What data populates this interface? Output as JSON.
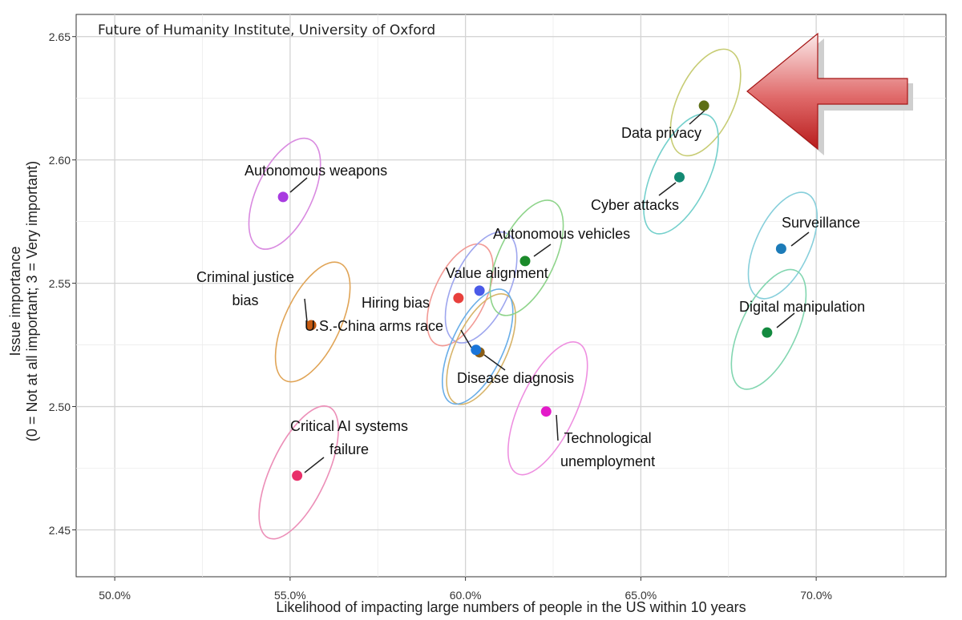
{
  "watermark": "Future of Humanity Institute, University of Oxford",
  "chart_data": {
    "type": "scatter",
    "title": "",
    "xlabel": "Likelihood of impacting large numbers of people in the US within 10 years",
    "ylabel_line1": "Issue importance",
    "ylabel_line2": "(0 = Not at all important; 3 = Very important)",
    "xlim": [
      48.9,
      73.7
    ],
    "ylim": [
      2.431,
      2.659
    ],
    "x_ticks": [
      "50.0%",
      "55.0%",
      "60.0%",
      "65.0%",
      "70.0%"
    ],
    "y_ticks": [
      "2.45",
      "2.50",
      "2.55",
      "2.60",
      "2.65"
    ],
    "grid": true,
    "points": [
      {
        "label": "Autonomous weapons",
        "x": 54.8,
        "y": 2.585,
        "color": "#a83be0",
        "ellipse_color": "#d98ae0",
        "dx": 2.2,
        "dy": 0.021,
        "lines": [
          "Autonomous weapons"
        ]
      },
      {
        "label": "Criminal justice bias",
        "x": 55.6,
        "y": 2.533,
        "color": "#c55a11",
        "ellipse_color": "#e0a456",
        "dx": 2.2,
        "dy": 0.023,
        "lines": [
          "Criminal justice",
          "bias"
        ]
      },
      {
        "label": "Critical AI systems failure",
        "x": 55.2,
        "y": 2.472,
        "color": "#e8306a",
        "ellipse_color": "#ec8fb8",
        "dx": 2.2,
        "dy": 0.026,
        "lines": [
          "Critical AI systems",
          "failure"
        ]
      },
      {
        "label": "Hiring bias",
        "x": 59.8,
        "y": 2.544,
        "color": "#e8403c",
        "ellipse_color": "#f29a95",
        "dx": 2.0,
        "dy": 0.019,
        "lines": [
          "Hiring bias"
        ]
      },
      {
        "label": "Value alignment",
        "x": 60.4,
        "y": 2.547,
        "color": "#4a5ae8",
        "ellipse_color": "#9ea6ee",
        "dx": 2.2,
        "dy": 0.021,
        "lines": [
          "Value alignment"
        ]
      },
      {
        "label": "U.S.-China arms race",
        "x": 60.4,
        "y": 2.522,
        "color": "#8a5d16",
        "ellipse_color": "#d7b46a",
        "dx": 2.0,
        "dy": 0.021,
        "lines": [
          "U.S.-China arms race"
        ]
      },
      {
        "label": "Disease diagnosis",
        "x": 60.3,
        "y": 2.523,
        "color": "#1a75d9",
        "ellipse_color": "#6aaee8",
        "dx": 2.0,
        "dy": 0.022,
        "lines": [
          "Disease diagnosis"
        ]
      },
      {
        "label": "Autonomous vehicles",
        "x": 61.7,
        "y": 2.559,
        "color": "#1b8a2a",
        "ellipse_color": "#8fd48b",
        "dx": 2.2,
        "dy": 0.022,
        "lines": [
          "Autonomous vehicles"
        ]
      },
      {
        "label": "Technological unemployment",
        "x": 62.3,
        "y": 2.498,
        "color": "#e31ac9",
        "ellipse_color": "#ee8fe0",
        "dx": 2.2,
        "dy": 0.026,
        "lines": [
          "Technological",
          "unemployment"
        ]
      },
      {
        "label": "Data privacy",
        "x": 66.8,
        "y": 2.622,
        "color": "#5e7015",
        "ellipse_color": "#c7cc74",
        "dx": 2.2,
        "dy": 0.02,
        "lines": [
          "Data privacy"
        ]
      },
      {
        "label": "Cyber attacks",
        "x": 66.1,
        "y": 2.593,
        "color": "#138a73",
        "ellipse_color": "#74d0cc",
        "dx": 2.2,
        "dy": 0.023,
        "lines": [
          "Cyber attacks"
        ]
      },
      {
        "label": "Surveillance",
        "x": 69.0,
        "y": 2.564,
        "color": "#1c7bb8",
        "ellipse_color": "#87cfdb",
        "dx": 2.1,
        "dy": 0.02,
        "lines": [
          "Surveillance"
        ]
      },
      {
        "label": "Digital manipulation",
        "x": 68.6,
        "y": 2.53,
        "color": "#138a3f",
        "ellipse_color": "#82d6b0",
        "dx": 2.2,
        "dy": 0.023,
        "lines": [
          "Digital manipulation"
        ]
      }
    ]
  }
}
